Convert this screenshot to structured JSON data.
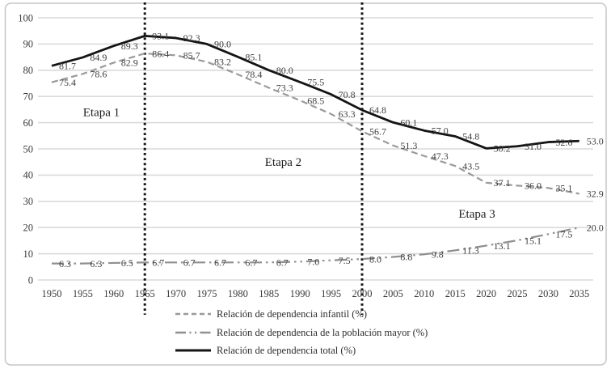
{
  "figure": {
    "background": "#ffffff",
    "border_color": "#c6c6c6",
    "gridline_color": "#dadada",
    "axis_text_color": "#3a3a3a",
    "data_label_color": "#3d3d3d",
    "annotation_color": "#1c1c1c",
    "divider_color": "#141414"
  },
  "chart_data": {
    "type": "line",
    "title": "",
    "xlabel": "",
    "ylabel": "",
    "x_years": [
      1950,
      1955,
      1960,
      1965,
      1970,
      1975,
      1980,
      1985,
      1990,
      1995,
      2000,
      2005,
      2010,
      2015,
      2020,
      2025,
      2030,
      2035
    ],
    "ylim": [
      0,
      100
    ],
    "y_ticks": [
      0,
      10,
      20,
      30,
      40,
      50,
      60,
      70,
      80,
      90,
      100
    ],
    "grid": true,
    "legend_position": "bottom",
    "series": [
      {
        "name": "Relación de dependencia infantil (%)",
        "style": "dashed",
        "color": "#9a9a9a",
        "values": [
          75.4,
          78.6,
          82.9,
          86.4,
          85.7,
          83.2,
          78.4,
          73.3,
          68.5,
          63.3,
          56.7,
          51.3,
          47.3,
          43.5,
          37.1,
          36.0,
          35.1,
          32.9
        ]
      },
      {
        "name": "Relación de dependencia de la población mayor (%)",
        "style": "dashdot",
        "color": "#8f8f8f",
        "values": [
          6.3,
          6.3,
          6.5,
          6.7,
          6.7,
          6.7,
          6.7,
          6.7,
          7.0,
          7.5,
          8.0,
          8.8,
          9.8,
          11.3,
          13.1,
          15.1,
          17.5,
          20.0
        ]
      },
      {
        "name": "Relación de dependencia total (%)",
        "style": "solid",
        "color": "#141414",
        "values": [
          81.7,
          84.9,
          89.3,
          93.1,
          92.3,
          90.0,
          85.1,
          80.0,
          75.5,
          70.8,
          64.8,
          60.1,
          57.0,
          54.8,
          50.2,
          51.0,
          52.6,
          53.0
        ]
      }
    ],
    "dividers": [
      {
        "year": 1965
      },
      {
        "year": 2000
      }
    ],
    "annotations": [
      {
        "label": "Etapa 1",
        "year": 1958.0,
        "value": 64.0
      },
      {
        "label": "Etapa 2",
        "year": 1987.3,
        "value": 45.0
      },
      {
        "label": "Etapa 3",
        "year": 2018.5,
        "value": 25.3
      }
    ]
  }
}
